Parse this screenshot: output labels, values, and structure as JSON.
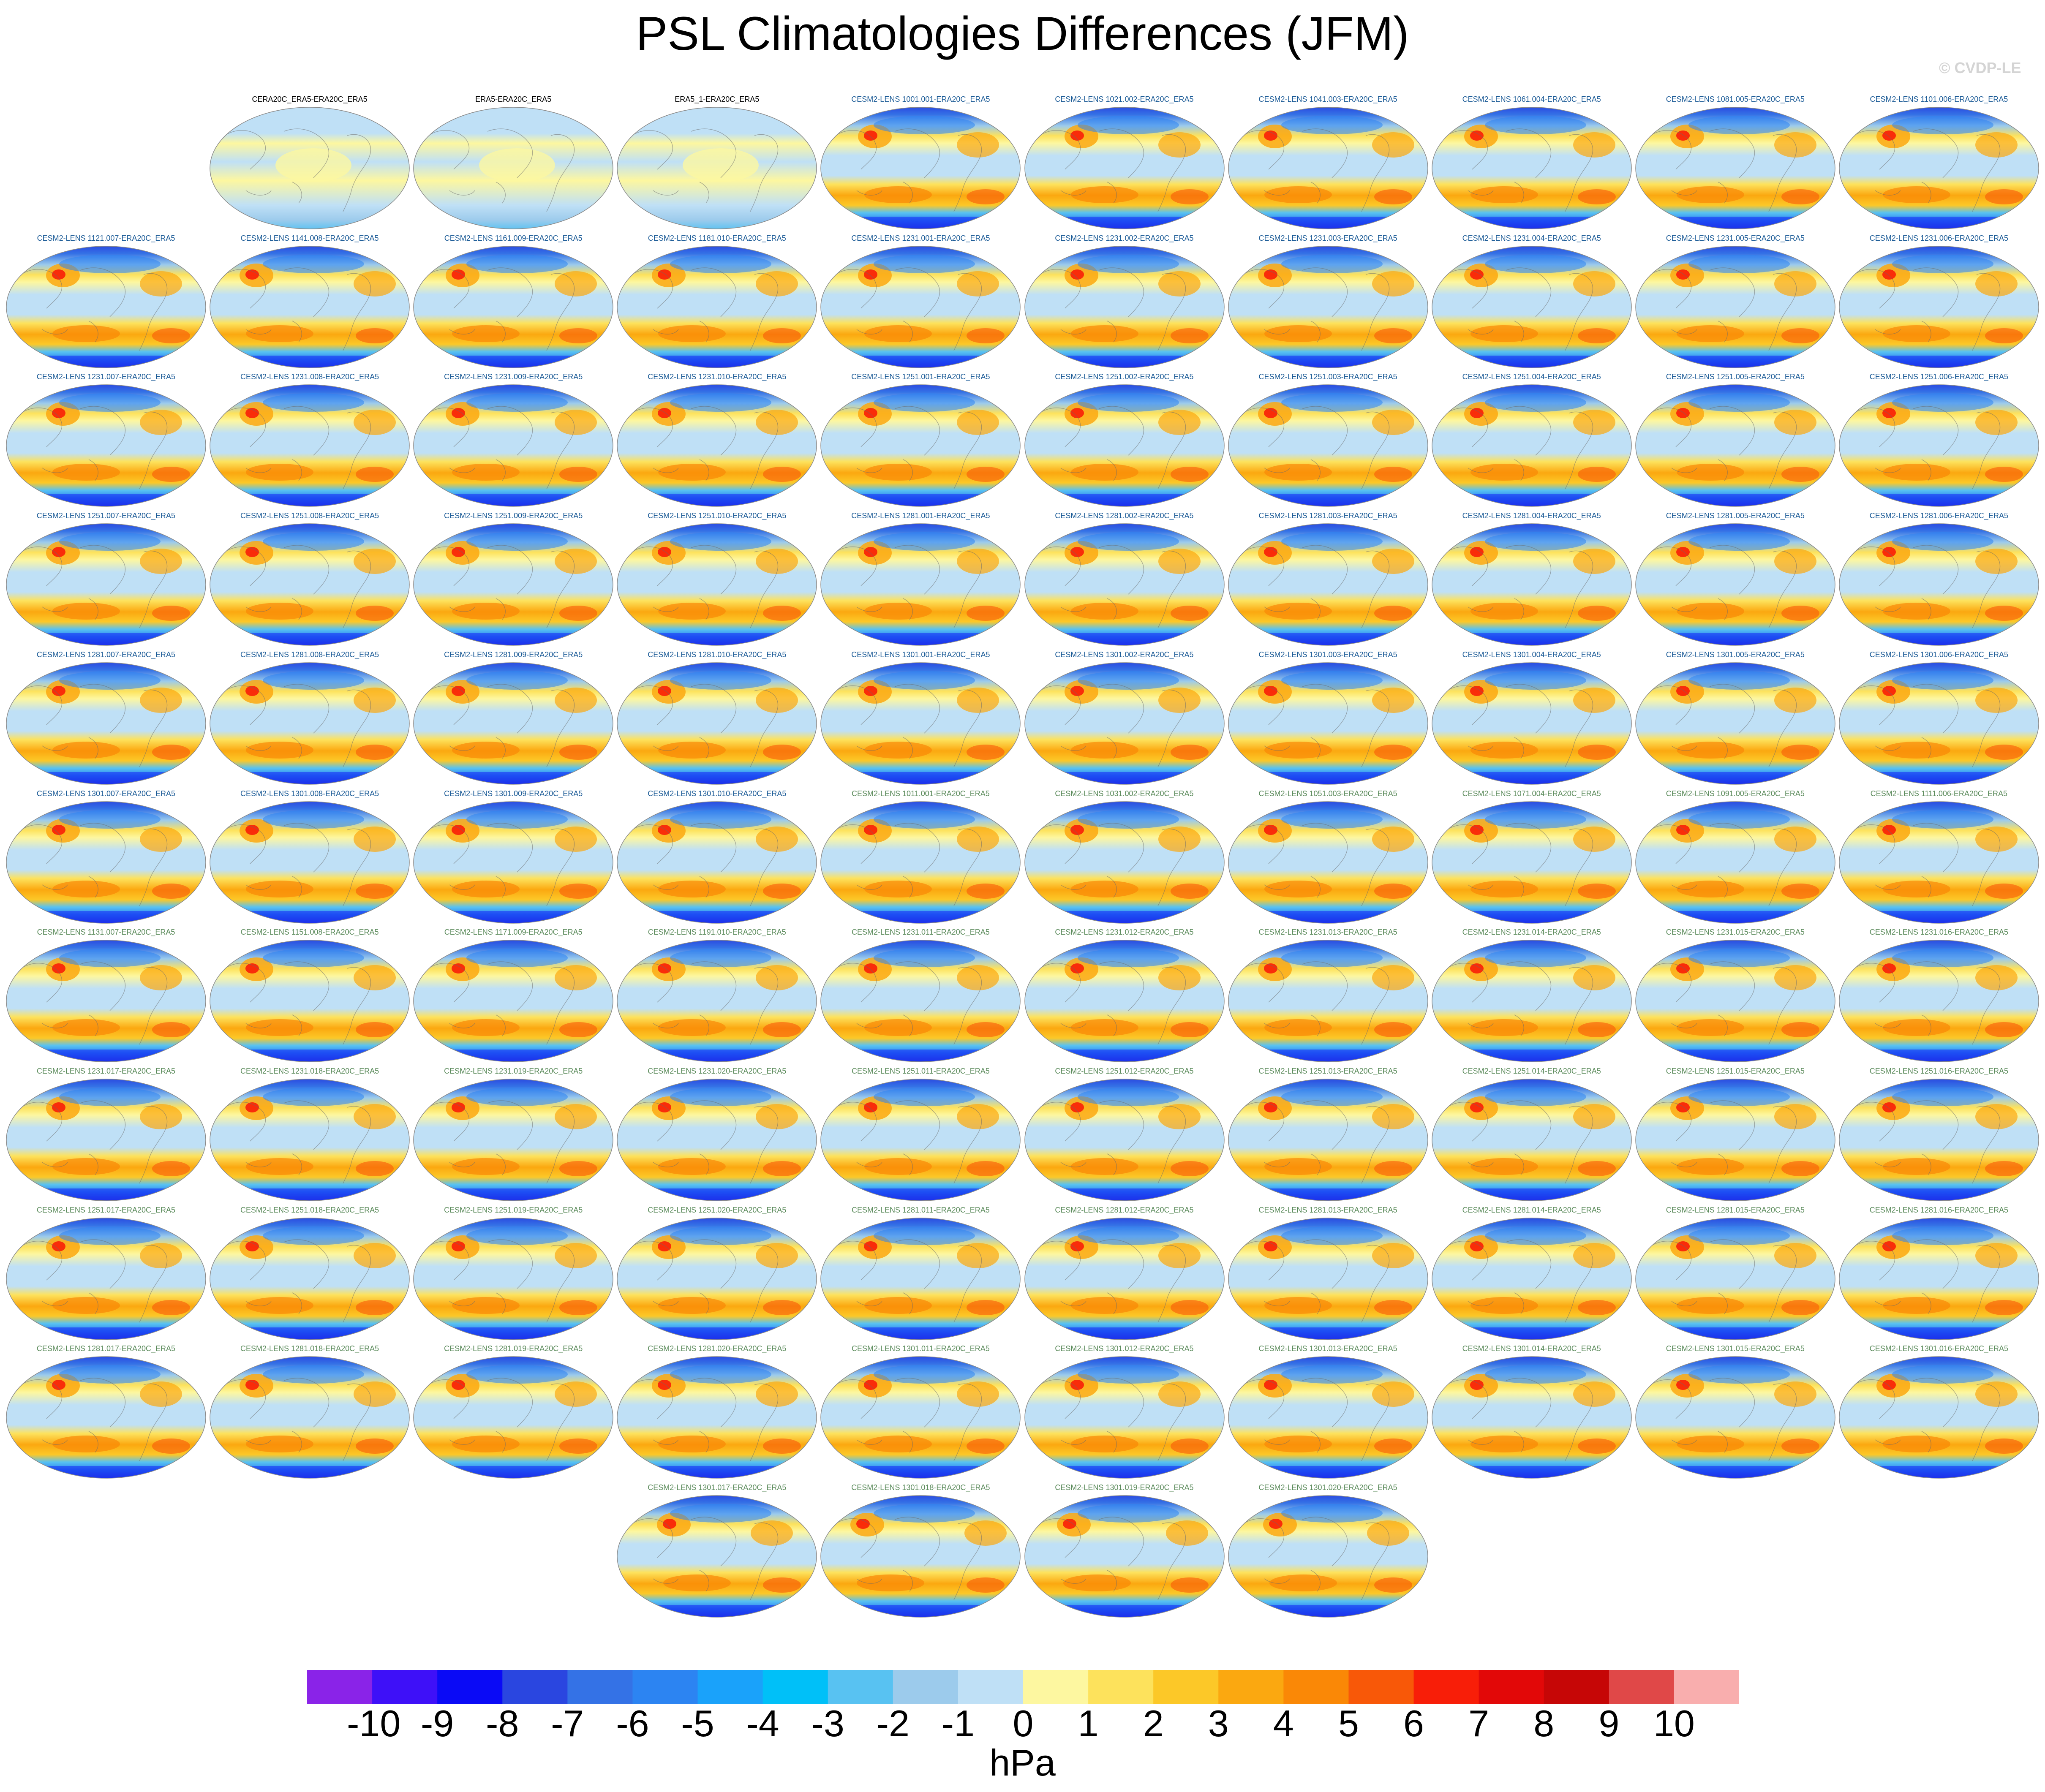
{
  "title": "PSL Climatologies Differences (JFM)",
  "watermark": "© CVDP-LE",
  "colors": {
    "obs_label": "#000000",
    "lens_label_a": "#1a5a96",
    "lens_label_b": "#5a8a5a",
    "map_outline": "#8a8a8a",
    "coast": "#6a6a6a"
  },
  "panel_rows": [
    {
      "offset": 1,
      "panels": [
        {
          "label": "CERA20C_ERA5-ERA20C_ERA5",
          "group": "obs"
        },
        {
          "label": "ERA5-ERA20C_ERA5",
          "group": "obs"
        },
        {
          "label": "ERA5_1-ERA20C_ERA5",
          "group": "obs"
        },
        {
          "label": "CESM2-LENS 1001.001-ERA20C_ERA5",
          "group": "a"
        },
        {
          "label": "CESM2-LENS 1021.002-ERA20C_ERA5",
          "group": "a"
        },
        {
          "label": "CESM2-LENS 1041.003-ERA20C_ERA5",
          "group": "a"
        },
        {
          "label": "CESM2-LENS 1061.004-ERA20C_ERA5",
          "group": "a"
        },
        {
          "label": "CESM2-LENS 1081.005-ERA20C_ERA5",
          "group": "a"
        },
        {
          "label": "CESM2-LENS 1101.006-ERA20C_ERA5",
          "group": "a"
        }
      ]
    },
    {
      "offset": 0,
      "panels": [
        {
          "label": "CESM2-LENS 1121.007-ERA20C_ERA5",
          "group": "a"
        },
        {
          "label": "CESM2-LENS 1141.008-ERA20C_ERA5",
          "group": "a"
        },
        {
          "label": "CESM2-LENS 1161.009-ERA20C_ERA5",
          "group": "a"
        },
        {
          "label": "CESM2-LENS 1181.010-ERA20C_ERA5",
          "group": "a"
        },
        {
          "label": "CESM2-LENS 1231.001-ERA20C_ERA5",
          "group": "a"
        },
        {
          "label": "CESM2-LENS 1231.002-ERA20C_ERA5",
          "group": "a"
        },
        {
          "label": "CESM2-LENS 1231.003-ERA20C_ERA5",
          "group": "a"
        },
        {
          "label": "CESM2-LENS 1231.004-ERA20C_ERA5",
          "group": "a"
        },
        {
          "label": "CESM2-LENS 1231.005-ERA20C_ERA5",
          "group": "a"
        },
        {
          "label": "CESM2-LENS 1231.006-ERA20C_ERA5",
          "group": "a"
        }
      ]
    },
    {
      "offset": 0,
      "panels": [
        {
          "label": "CESM2-LENS 1231.007-ERA20C_ERA5",
          "group": "a"
        },
        {
          "label": "CESM2-LENS 1231.008-ERA20C_ERA5",
          "group": "a"
        },
        {
          "label": "CESM2-LENS 1231.009-ERA20C_ERA5",
          "group": "a"
        },
        {
          "label": "CESM2-LENS 1231.010-ERA20C_ERA5",
          "group": "a"
        },
        {
          "label": "CESM2-LENS 1251.001-ERA20C_ERA5",
          "group": "a"
        },
        {
          "label": "CESM2-LENS 1251.002-ERA20C_ERA5",
          "group": "a"
        },
        {
          "label": "CESM2-LENS 1251.003-ERA20C_ERA5",
          "group": "a"
        },
        {
          "label": "CESM2-LENS 1251.004-ERA20C_ERA5",
          "group": "a"
        },
        {
          "label": "CESM2-LENS 1251.005-ERA20C_ERA5",
          "group": "a"
        },
        {
          "label": "CESM2-LENS 1251.006-ERA20C_ERA5",
          "group": "a"
        }
      ]
    },
    {
      "offset": 0,
      "panels": [
        {
          "label": "CESM2-LENS 1251.007-ERA20C_ERA5",
          "group": "a"
        },
        {
          "label": "CESM2-LENS 1251.008-ERA20C_ERA5",
          "group": "a"
        },
        {
          "label": "CESM2-LENS 1251.009-ERA20C_ERA5",
          "group": "a"
        },
        {
          "label": "CESM2-LENS 1251.010-ERA20C_ERA5",
          "group": "a"
        },
        {
          "label": "CESM2-LENS 1281.001-ERA20C_ERA5",
          "group": "a"
        },
        {
          "label": "CESM2-LENS 1281.002-ERA20C_ERA5",
          "group": "a"
        },
        {
          "label": "CESM2-LENS 1281.003-ERA20C_ERA5",
          "group": "a"
        },
        {
          "label": "CESM2-LENS 1281.004-ERA20C_ERA5",
          "group": "a"
        },
        {
          "label": "CESM2-LENS 1281.005-ERA20C_ERA5",
          "group": "a"
        },
        {
          "label": "CESM2-LENS 1281.006-ERA20C_ERA5",
          "group": "a"
        }
      ]
    },
    {
      "offset": 0,
      "panels": [
        {
          "label": "CESM2-LENS 1281.007-ERA20C_ERA5",
          "group": "a"
        },
        {
          "label": "CESM2-LENS 1281.008-ERA20C_ERA5",
          "group": "a"
        },
        {
          "label": "CESM2-LENS 1281.009-ERA20C_ERA5",
          "group": "a"
        },
        {
          "label": "CESM2-LENS 1281.010-ERA20C_ERA5",
          "group": "a"
        },
        {
          "label": "CESM2-LENS 1301.001-ERA20C_ERA5",
          "group": "a"
        },
        {
          "label": "CESM2-LENS 1301.002-ERA20C_ERA5",
          "group": "a"
        },
        {
          "label": "CESM2-LENS 1301.003-ERA20C_ERA5",
          "group": "a"
        },
        {
          "label": "CESM2-LENS 1301.004-ERA20C_ERA5",
          "group": "a"
        },
        {
          "label": "CESM2-LENS 1301.005-ERA20C_ERA5",
          "group": "a"
        },
        {
          "label": "CESM2-LENS 1301.006-ERA20C_ERA5",
          "group": "a"
        }
      ]
    },
    {
      "offset": 0,
      "panels": [
        {
          "label": "CESM2-LENS 1301.007-ERA20C_ERA5",
          "group": "a"
        },
        {
          "label": "CESM2-LENS 1301.008-ERA20C_ERA5",
          "group": "a"
        },
        {
          "label": "CESM2-LENS 1301.009-ERA20C_ERA5",
          "group": "a"
        },
        {
          "label": "CESM2-LENS 1301.010-ERA20C_ERA5",
          "group": "a"
        },
        {
          "label": "CESM2-LENS 1011.001-ERA20C_ERA5",
          "group": "b"
        },
        {
          "label": "CESM2-LENS 1031.002-ERA20C_ERA5",
          "group": "b"
        },
        {
          "label": "CESM2-LENS 1051.003-ERA20C_ERA5",
          "group": "b"
        },
        {
          "label": "CESM2-LENS 1071.004-ERA20C_ERA5",
          "group": "b"
        },
        {
          "label": "CESM2-LENS 1091.005-ERA20C_ERA5",
          "group": "b"
        },
        {
          "label": "CESM2-LENS 1111.006-ERA20C_ERA5",
          "group": "b"
        }
      ]
    },
    {
      "offset": 0,
      "panels": [
        {
          "label": "CESM2-LENS 1131.007-ERA20C_ERA5",
          "group": "b"
        },
        {
          "label": "CESM2-LENS 1151.008-ERA20C_ERA5",
          "group": "b"
        },
        {
          "label": "CESM2-LENS 1171.009-ERA20C_ERA5",
          "group": "b"
        },
        {
          "label": "CESM2-LENS 1191.010-ERA20C_ERA5",
          "group": "b"
        },
        {
          "label": "CESM2-LENS 1231.011-ERA20C_ERA5",
          "group": "b"
        },
        {
          "label": "CESM2-LENS 1231.012-ERA20C_ERA5",
          "group": "b"
        },
        {
          "label": "CESM2-LENS 1231.013-ERA20C_ERA5",
          "group": "b"
        },
        {
          "label": "CESM2-LENS 1231.014-ERA20C_ERA5",
          "group": "b"
        },
        {
          "label": "CESM2-LENS 1231.015-ERA20C_ERA5",
          "group": "b"
        },
        {
          "label": "CESM2-LENS 1231.016-ERA20C_ERA5",
          "group": "b"
        }
      ]
    },
    {
      "offset": 0,
      "panels": [
        {
          "label": "CESM2-LENS 1231.017-ERA20C_ERA5",
          "group": "b"
        },
        {
          "label": "CESM2-LENS 1231.018-ERA20C_ERA5",
          "group": "b"
        },
        {
          "label": "CESM2-LENS 1231.019-ERA20C_ERA5",
          "group": "b"
        },
        {
          "label": "CESM2-LENS 1231.020-ERA20C_ERA5",
          "group": "b"
        },
        {
          "label": "CESM2-LENS 1251.011-ERA20C_ERA5",
          "group": "b"
        },
        {
          "label": "CESM2-LENS 1251.012-ERA20C_ERA5",
          "group": "b"
        },
        {
          "label": "CESM2-LENS 1251.013-ERA20C_ERA5",
          "group": "b"
        },
        {
          "label": "CESM2-LENS 1251.014-ERA20C_ERA5",
          "group": "b"
        },
        {
          "label": "CESM2-LENS 1251.015-ERA20C_ERA5",
          "group": "b"
        },
        {
          "label": "CESM2-LENS 1251.016-ERA20C_ERA5",
          "group": "b"
        }
      ]
    },
    {
      "offset": 0,
      "panels": [
        {
          "label": "CESM2-LENS 1251.017-ERA20C_ERA5",
          "group": "b"
        },
        {
          "label": "CESM2-LENS 1251.018-ERA20C_ERA5",
          "group": "b"
        },
        {
          "label": "CESM2-LENS 1251.019-ERA20C_ERA5",
          "group": "b"
        },
        {
          "label": "CESM2-LENS 1251.020-ERA20C_ERA5",
          "group": "b"
        },
        {
          "label": "CESM2-LENS 1281.011-ERA20C_ERA5",
          "group": "b"
        },
        {
          "label": "CESM2-LENS 1281.012-ERA20C_ERA5",
          "group": "b"
        },
        {
          "label": "CESM2-LENS 1281.013-ERA20C_ERA5",
          "group": "b"
        },
        {
          "label": "CESM2-LENS 1281.014-ERA20C_ERA5",
          "group": "b"
        },
        {
          "label": "CESM2-LENS 1281.015-ERA20C_ERA5",
          "group": "b"
        },
        {
          "label": "CESM2-LENS 1281.016-ERA20C_ERA5",
          "group": "b"
        }
      ]
    },
    {
      "offset": 0,
      "panels": [
        {
          "label": "CESM2-LENS 1281.017-ERA20C_ERA5",
          "group": "b"
        },
        {
          "label": "CESM2-LENS 1281.018-ERA20C_ERA5",
          "group": "b"
        },
        {
          "label": "CESM2-LENS 1281.019-ERA20C_ERA5",
          "group": "b"
        },
        {
          "label": "CESM2-LENS 1281.020-ERA20C_ERA5",
          "group": "b"
        },
        {
          "label": "CESM2-LENS 1301.011-ERA20C_ERA5",
          "group": "b"
        },
        {
          "label": "CESM2-LENS 1301.012-ERA20C_ERA5",
          "group": "b"
        },
        {
          "label": "CESM2-LENS 1301.013-ERA20C_ERA5",
          "group": "b"
        },
        {
          "label": "CESM2-LENS 1301.014-ERA20C_ERA5",
          "group": "b"
        },
        {
          "label": "CESM2-LENS 1301.015-ERA20C_ERA5",
          "group": "b"
        },
        {
          "label": "CESM2-LENS 1301.016-ERA20C_ERA5",
          "group": "b"
        }
      ]
    },
    {
      "offset": 3,
      "panels": [
        {
          "label": "CESM2-LENS 1301.017-ERA20C_ERA5",
          "group": "b"
        },
        {
          "label": "CESM2-LENS 1301.018-ERA20C_ERA5",
          "group": "b"
        },
        {
          "label": "CESM2-LENS 1301.019-ERA20C_ERA5",
          "group": "b"
        },
        {
          "label": "CESM2-LENS 1301.020-ERA20C_ERA5",
          "group": "b"
        }
      ]
    }
  ],
  "colorbar": {
    "colors": [
      "#8a23e8",
      "#3e10f8",
      "#0a0af6",
      "#2a46e0",
      "#3472e6",
      "#2c84f2",
      "#1aa2fa",
      "#00c0f8",
      "#58c2f2",
      "#9ccbec",
      "#bfe0f6",
      "#fdf7a0",
      "#fde25c",
      "#fcc828",
      "#fba810",
      "#fa8806",
      "#f85808",
      "#f81e08",
      "#e20808",
      "#c60606",
      "#e04848",
      "#f9aeae"
    ],
    "labels": [
      "-10",
      "-9",
      "-8",
      "-7",
      "-6",
      "-5",
      "-4",
      "-3",
      "-2",
      "-1",
      "0",
      "1",
      "2",
      "3",
      "4",
      "5",
      "6",
      "7",
      "8",
      "9",
      "10"
    ],
    "units": "hPa"
  }
}
